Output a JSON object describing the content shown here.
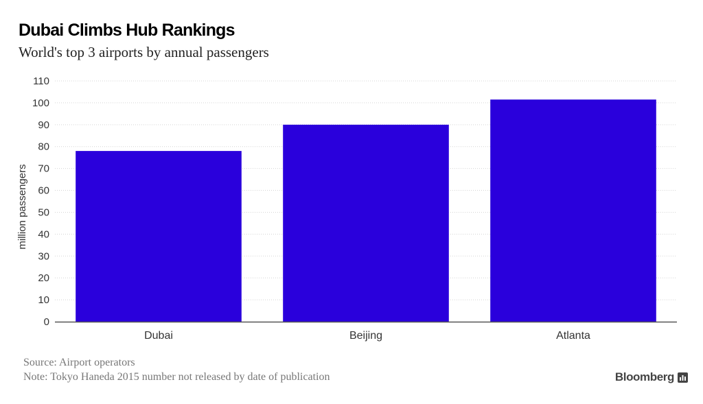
{
  "chart_data": {
    "type": "bar",
    "title": "Dubai Climbs Hub Rankings",
    "subtitle": "World's top 3 airports by annual passengers",
    "categories": [
      "Dubai",
      "Beijing",
      "Atlanta"
    ],
    "values": [
      78,
      90,
      101.5
    ],
    "ylabel": "million passengers",
    "xlabel": "",
    "ylim": [
      0,
      110
    ],
    "yticks": [
      0,
      10,
      20,
      30,
      40,
      50,
      60,
      70,
      80,
      90,
      100,
      110
    ],
    "grid": true,
    "legend": "none",
    "bar_color": "#2a00dc"
  },
  "footer": {
    "source": "Source: Airport operators",
    "note": "Note: Tokyo Haneda 2015 number not released by date of publication",
    "brand": "Bloomberg",
    "brand_icon": "bar-chart-icon"
  }
}
